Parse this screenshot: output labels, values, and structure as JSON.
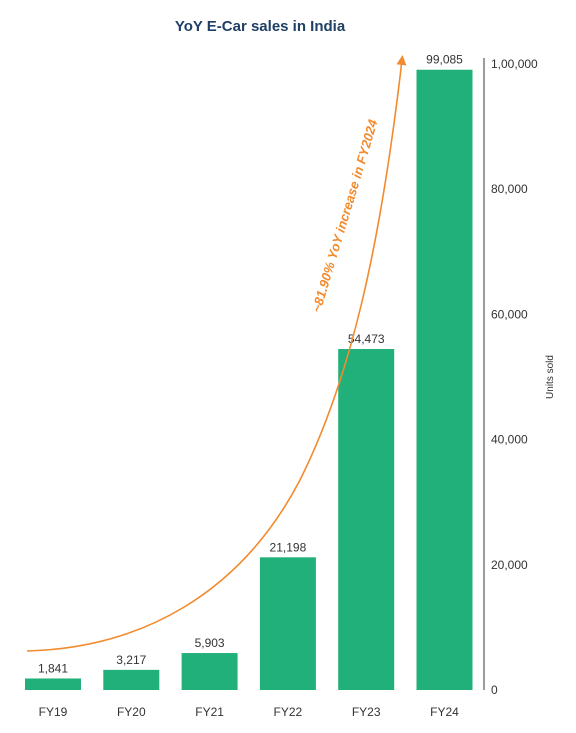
{
  "colors": {
    "bar": "#22b07a",
    "title": "#1f3f66",
    "annotation": "#f28a2e",
    "axis": "#3a3a3a",
    "text": "#333333"
  },
  "chart_data": {
    "type": "bar",
    "title": "YoY E-Car sales in India",
    "xlabel": "",
    "ylabel": "Units sold",
    "categories": [
      "FY19",
      "FY20",
      "FY21",
      "FY22",
      "FY23",
      "FY24"
    ],
    "series": [
      {
        "values": [
          1841,
          3217,
          5903,
          21198,
          54473,
          99085
        ]
      }
    ],
    "data_labels": [
      "1,841",
      "3,217",
      "5,903",
      "21,198",
      "54,473",
      "99,085"
    ],
    "ylim": [
      0,
      100000
    ],
    "y_ticks": [
      0,
      20000,
      40000,
      60000,
      80000,
      100000
    ],
    "y_tick_labels": [
      "0",
      "20,000",
      "40,000",
      "60,000",
      "80,000",
      "1,00,000"
    ],
    "y_axis_side": "right",
    "grid": false,
    "legend": "none",
    "annotation": {
      "text": "~81.90% YoY increase in FY2024",
      "type": "curved-arrow"
    }
  }
}
